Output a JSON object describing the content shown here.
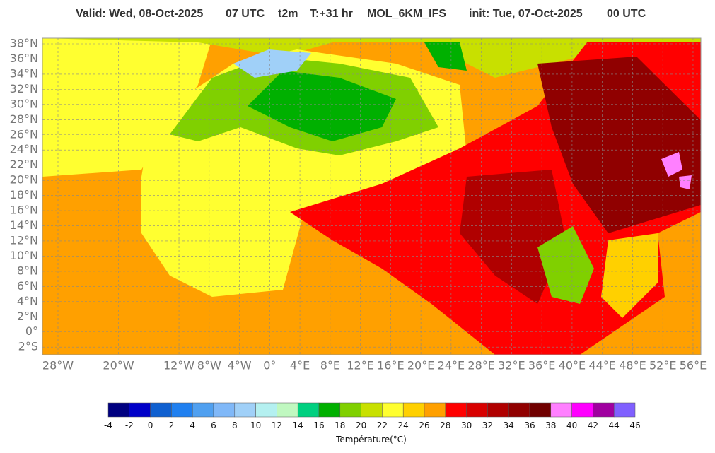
{
  "header": {
    "valid": "Valid: Wed, 08-Oct-2025",
    "valid_time": "07 UTC",
    "variable": "t2m",
    "step": "T:+31 hr",
    "model": "MOL_6KM_IFS",
    "init": "init: Tue, 07-Oct-2025",
    "init_time": "00 UTC"
  },
  "map": {
    "lat_labels": [
      {
        "value": 38,
        "label": "38°N"
      },
      {
        "value": 36,
        "label": "36°N"
      },
      {
        "value": 34,
        "label": "34°N"
      },
      {
        "value": 32,
        "label": "32°N"
      },
      {
        "value": 30,
        "label": "30°N"
      },
      {
        "value": 28,
        "label": "28°N"
      },
      {
        "value": 26,
        "label": "26°N"
      },
      {
        "value": 24,
        "label": "24°N"
      },
      {
        "value": 22,
        "label": "22°N"
      },
      {
        "value": 20,
        "label": "20°N"
      },
      {
        "value": 18,
        "label": "18°N"
      },
      {
        "value": 16,
        "label": "16°N"
      },
      {
        "value": 14,
        "label": "14°N"
      },
      {
        "value": 12,
        "label": "12°N"
      },
      {
        "value": 10,
        "label": "10°N"
      },
      {
        "value": 8,
        "label": "8°N"
      },
      {
        "value": 6,
        "label": "6°N"
      },
      {
        "value": 4,
        "label": "4°N"
      },
      {
        "value": 2,
        "label": "2°N"
      },
      {
        "value": 0,
        "label": "0°"
      },
      {
        "value": -2,
        "label": "2°S"
      }
    ],
    "lon_labels": [
      {
        "value": -28,
        "label": "28°W"
      },
      {
        "value": -20,
        "label": "20°W"
      },
      {
        "value": -12,
        "label": "12°W"
      },
      {
        "value": -8,
        "label": "8°W"
      },
      {
        "value": -4,
        "label": "4°W"
      },
      {
        "value": 0,
        "label": "0°"
      },
      {
        "value": 4,
        "label": "4°E"
      },
      {
        "value": 8,
        "label": "8°E"
      },
      {
        "value": 12,
        "label": "12°E"
      },
      {
        "value": 16,
        "label": "16°E"
      },
      {
        "value": 20,
        "label": "20°E"
      },
      {
        "value": 24,
        "label": "24°E"
      },
      {
        "value": 28,
        "label": "28°E"
      },
      {
        "value": 32,
        "label": "32°E"
      },
      {
        "value": 36,
        "label": "36°E"
      },
      {
        "value": 40,
        "label": "40°E"
      },
      {
        "value": 44,
        "label": "44°E"
      },
      {
        "value": 48,
        "label": "48°E"
      },
      {
        "value": 52,
        "label": "52°E"
      },
      {
        "value": 56,
        "label": "56°E"
      }
    ]
  },
  "colorbar": {
    "label": "Température(°C)",
    "ticks": [
      -4,
      -2,
      0,
      2,
      4,
      6,
      8,
      10,
      12,
      14,
      16,
      18,
      20,
      22,
      24,
      26,
      28,
      30,
      32,
      34,
      36,
      38,
      40,
      42,
      44,
      46
    ],
    "colors": [
      "#000080",
      "#0000c8",
      "#1060d0",
      "#2080f0",
      "#50a0f0",
      "#80b8f8",
      "#a0d0f8",
      "#b4f0f0",
      "#c0f8c0",
      "#00d080",
      "#00b000",
      "#80d000",
      "#c8e000",
      "#ffff30",
      "#ffd000",
      "#ffa000",
      "#ff0000",
      "#d80000",
      "#b00000",
      "#900000",
      "#700000",
      "#ff80ff",
      "#ff00ff",
      "#a000a0",
      "#8060ff"
    ]
  }
}
